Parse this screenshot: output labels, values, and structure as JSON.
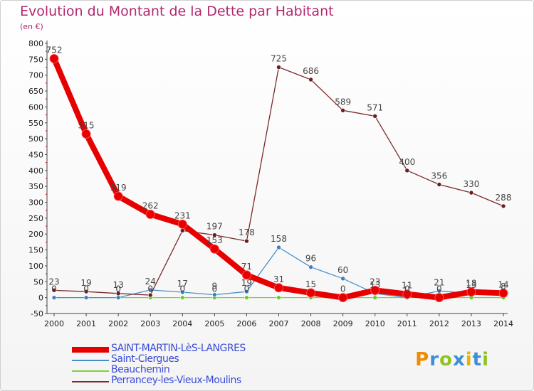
{
  "chart_data": {
    "type": "line",
    "title": "Evolution du Montant de la Dette par Habitant",
    "subtitle": "(en €)",
    "x": [
      "2000",
      "2001",
      "2002",
      "2003",
      "2004",
      "2005",
      "2006",
      "2007",
      "2008",
      "2009",
      "2010",
      "2011",
      "2012",
      "2013",
      "2014"
    ],
    "ylim": [
      -50,
      800
    ],
    "yticks": [
      -50,
      0,
      50,
      100,
      150,
      200,
      250,
      300,
      350,
      400,
      450,
      500,
      550,
      600,
      650,
      700,
      750,
      800
    ],
    "grid": false,
    "legend_position": "bottom-left",
    "series": [
      {
        "name": "SAINT-MARTIN-LèS-LANGRES",
        "color": "#e60000",
        "values": [
          752,
          515,
          319,
          262,
          231,
          153,
          71,
          31,
          15,
          0,
          23,
          11,
          0,
          18,
          14
        ]
      },
      {
        "name": "Saint-Ciergues",
        "color": "#4a90c8",
        "values": [
          0,
          0,
          0,
          24,
          17,
          9,
          19,
          158,
          96,
          60,
          13,
          0,
          21,
          13,
          8
        ]
      },
      {
        "name": "Beauchemin",
        "color": "#7fd142",
        "values": [
          0,
          0,
          0,
          0,
          0,
          0,
          0,
          0,
          0,
          0,
          0,
          0,
          0,
          0,
          0
        ]
      },
      {
        "name": "Perrancey-les-Vieux-Moulins",
        "color": "#7b2a2a",
        "values": [
          23,
          19,
          13,
          8,
          211,
          197,
          178,
          725,
          686,
          589,
          571,
          400,
          356,
          330,
          288
        ]
      }
    ],
    "labels": [
      {
        "series": 0,
        "texts": [
          "752",
          "515",
          "319",
          "262",
          "231",
          "153",
          "71",
          "31",
          "15",
          "0",
          "23",
          "11",
          "0",
          "18",
          "14"
        ]
      },
      {
        "series": 1,
        "texts": [
          "",
          "",
          "",
          "24",
          "17",
          "9",
          "19",
          "158",
          "96",
          "60",
          "13",
          "0",
          "21",
          "13",
          "8"
        ]
      },
      {
        "series": 2,
        "texts": [
          "0",
          "0",
          "0",
          "0",
          "0",
          "0",
          "0",
          "",
          "",
          "",
          "",
          "",
          "",
          "",
          ""
        ]
      },
      {
        "series": 3,
        "texts": [
          "23",
          "19",
          "13",
          "",
          "",
          "197",
          "178",
          "725",
          "686",
          "589",
          "571",
          "400",
          "356",
          "330",
          "288"
        ]
      }
    ]
  },
  "brand": {
    "letters": [
      "P",
      "r",
      "o",
      "x",
      "i",
      "t",
      "i"
    ],
    "colors": [
      "#f08a00",
      "#3d8fd6",
      "#8fc31f",
      "#3d8fd6",
      "#e8b400",
      "#3d8fd6",
      "#8fc31f"
    ]
  }
}
